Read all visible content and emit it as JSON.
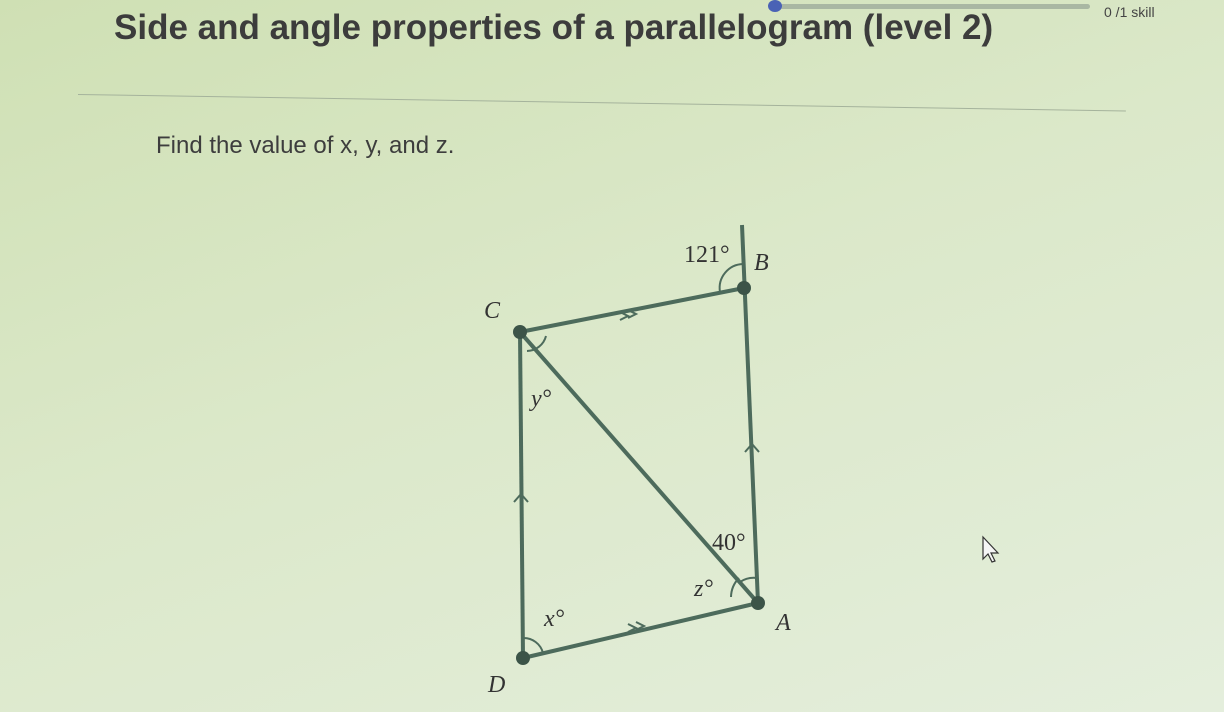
{
  "header": {
    "progress": "0 /1 skill",
    "title": "Side and angle properties of a parallelogram (level 2)"
  },
  "question": {
    "prompt": "Find the value of x, y, and z."
  },
  "diagram": {
    "vertices": [
      "C",
      "B",
      "A",
      "D"
    ],
    "angles": [
      "121°",
      "y°",
      "40°",
      "z°",
      "x°"
    ]
  }
}
